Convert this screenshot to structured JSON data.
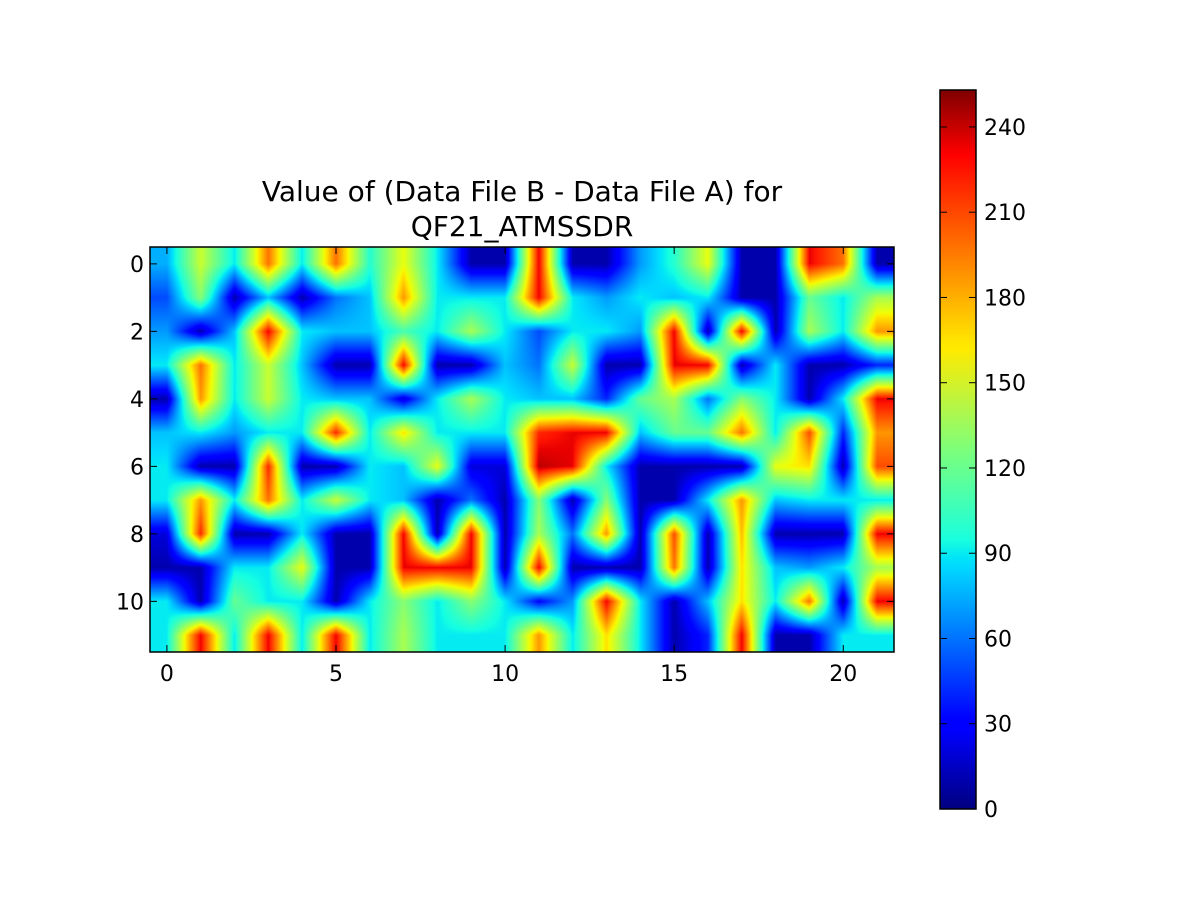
{
  "chart_data": {
    "type": "heatmap",
    "title_lines": [
      "Value of (Data File B - Data File A) for",
      "QF21_ATMSSDR"
    ],
    "xlabel": "",
    "ylabel": "",
    "x_range": [
      -0.5,
      21.5
    ],
    "y_range": [
      -0.5,
      11.5
    ],
    "x_ticks": [
      0,
      5,
      10,
      15,
      20
    ],
    "y_ticks": [
      0,
      2,
      4,
      6,
      8,
      10
    ],
    "colorbar": {
      "colormap": "jet",
      "range": [
        0,
        253
      ],
      "ticks": [
        0,
        30,
        60,
        90,
        120,
        150,
        180,
        210,
        240
      ]
    },
    "interpolation": "bilinear",
    "rows": 12,
    "cols": 22,
    "values": [
      [
        75,
        150,
        90,
        200,
        90,
        200,
        100,
        160,
        90,
        10,
        10,
        230,
        10,
        10,
        70,
        100,
        160,
        10,
        10,
        230,
        200,
        10
      ],
      [
        50,
        130,
        10,
        80,
        10,
        60,
        80,
        190,
        90,
        90,
        90,
        230,
        90,
        70,
        90,
        80,
        90,
        10,
        10,
        120,
        90,
        140
      ],
      [
        70,
        10,
        80,
        230,
        90,
        80,
        80,
        110,
        90,
        140,
        90,
        50,
        90,
        90,
        70,
        230,
        10,
        230,
        10,
        140,
        90,
        190
      ],
      [
        90,
        200,
        90,
        150,
        80,
        10,
        10,
        230,
        10,
        10,
        80,
        60,
        150,
        10,
        10,
        230,
        230,
        10,
        90,
        10,
        10,
        40
      ],
      [
        10,
        190,
        90,
        150,
        90,
        80,
        80,
        20,
        90,
        140,
        90,
        80,
        80,
        40,
        120,
        140,
        60,
        130,
        90,
        10,
        90,
        230
      ],
      [
        80,
        90,
        70,
        90,
        90,
        220,
        90,
        170,
        90,
        90,
        90,
        220,
        230,
        230,
        80,
        120,
        120,
        200,
        90,
        210,
        40,
        190
      ],
      [
        90,
        10,
        10,
        220,
        10,
        10,
        90,
        80,
        160,
        20,
        20,
        240,
        230,
        90,
        10,
        10,
        10,
        10,
        160,
        170,
        10,
        210
      ],
      [
        90,
        190,
        90,
        200,
        90,
        150,
        90,
        80,
        10,
        60,
        10,
        130,
        10,
        130,
        10,
        10,
        90,
        190,
        80,
        90,
        90,
        90
      ],
      [
        20,
        220,
        10,
        10,
        90,
        10,
        10,
        230,
        10,
        230,
        10,
        140,
        60,
        190,
        10,
        210,
        10,
        180,
        10,
        10,
        10,
        230
      ],
      [
        10,
        10,
        90,
        90,
        160,
        10,
        10,
        230,
        230,
        230,
        10,
        230,
        10,
        10,
        10,
        200,
        10,
        170,
        80,
        70,
        90,
        140
      ],
      [
        90,
        10,
        120,
        90,
        90,
        10,
        90,
        130,
        90,
        130,
        90,
        30,
        70,
        230,
        90,
        10,
        80,
        170,
        90,
        200,
        10,
        230
      ],
      [
        90,
        230,
        90,
        230,
        90,
        230,
        90,
        140,
        90,
        90,
        90,
        190,
        90,
        170,
        90,
        10,
        40,
        230,
        10,
        10,
        90,
        90
      ]
    ]
  }
}
